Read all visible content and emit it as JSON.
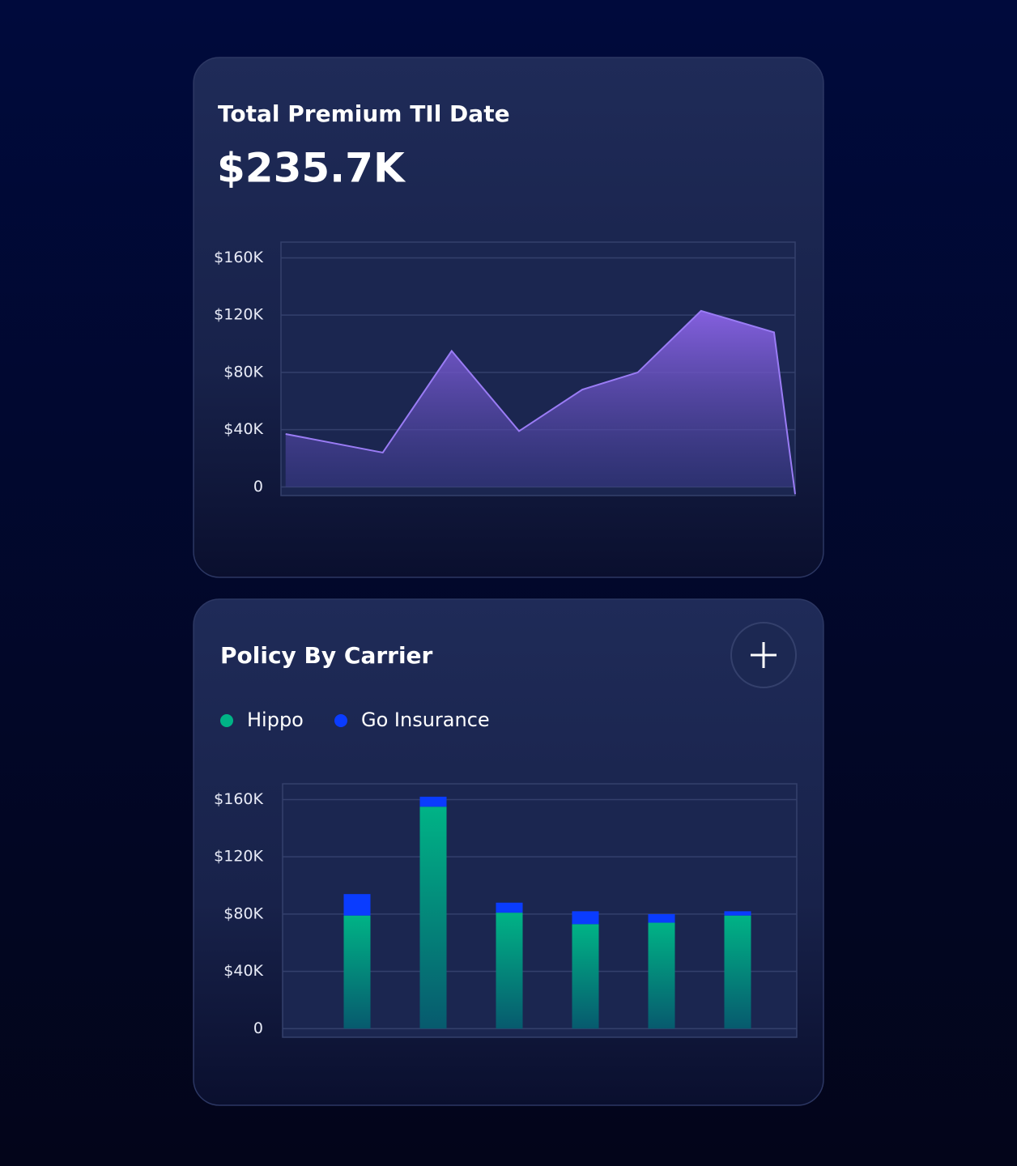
{
  "chart_data": [
    {
      "type": "area",
      "title": "Total Premium TIl Date",
      "subtitle": "$235.7K",
      "x": [
        0.9,
        19.8,
        33.2,
        46.3,
        58.6,
        69.4,
        81.7,
        95.9,
        100
      ],
      "values": [
        37000,
        24000,
        95000,
        39000,
        68000,
        80000,
        123000,
        108000,
        -5000
      ],
      "xlim": [
        0,
        100
      ],
      "color": "#9a7cf5",
      "ylim": [
        -6000,
        171000
      ],
      "yticks": [
        0,
        {
          "value": 40000,
          "label": "$40K"
        },
        {
          "value": 80000,
          "label": "$80K"
        },
        {
          "value": 120000,
          "label": "$120K"
        },
        {
          "value": 160000,
          "label": "$160K"
        }
      ],
      "grid": true
    },
    {
      "type": "bar",
      "title": "Policy By Carrier",
      "stacked": true,
      "categories": [
        null,
        null,
        null,
        null,
        null,
        null
      ],
      "series": [
        {
          "name": "Hippo",
          "color": "#00b386",
          "values": [
            79000,
            155000,
            81000,
            73000,
            74000,
            79000
          ]
        },
        {
          "name": "Go Insurance",
          "color": "#0a3cff",
          "values": [
            15000,
            7000,
            7000,
            9000,
            6000,
            3000
          ]
        }
      ],
      "ylim": [
        -6000,
        171000
      ],
      "yticks": [
        0,
        {
          "value": 40000,
          "label": "$40K"
        },
        {
          "value": 80000,
          "label": "$80K"
        },
        {
          "value": 120000,
          "label": "$120K"
        },
        {
          "value": 160000,
          "label": "$160K"
        }
      ],
      "grid": true
    }
  ]
}
